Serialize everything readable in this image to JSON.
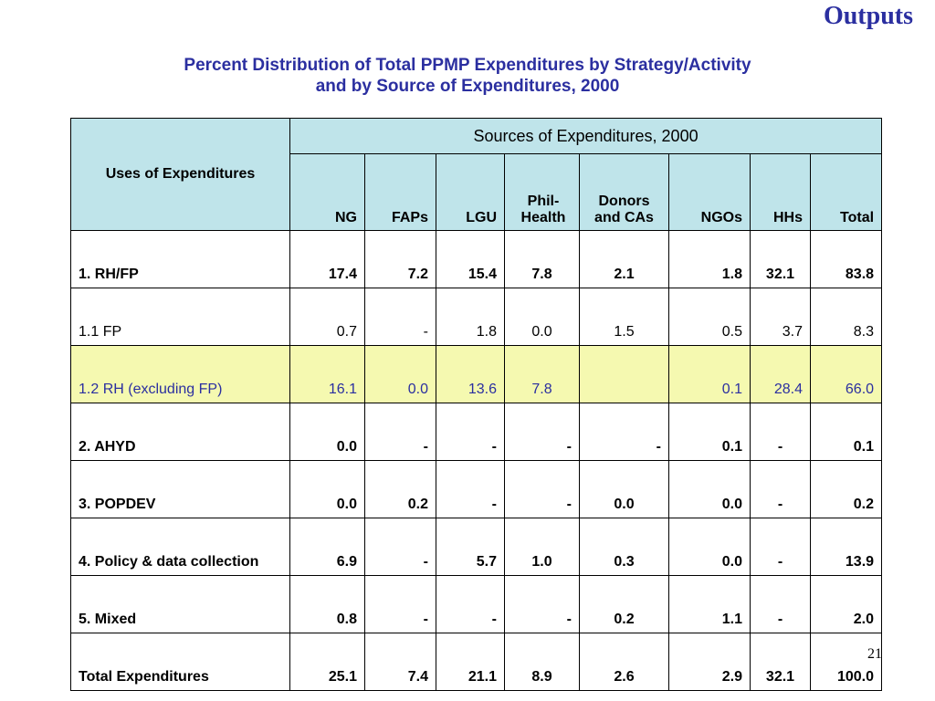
{
  "header": {
    "section": "Outputs",
    "title_line1": "Percent Distribution of Total PPMP Expenditures by Strategy/Activity",
    "title_line2": "and by Source of Expenditures,  2000"
  },
  "table": {
    "row_header": "Uses of Expenditures",
    "group_header": "Sources of Expenditures, 2000",
    "columns": [
      "NG",
      "FAPs",
      "LGU",
      "Phil-Health",
      "Donors and CAs",
      "NGOs",
      "HHs",
      "Total"
    ],
    "rows": [
      {
        "label": "1.  RH/FP",
        "values": [
          "17.4",
          "7.2",
          "15.4",
          "7.8",
          "2.1",
          "1.8",
          "32.1",
          "83.8"
        ]
      },
      {
        "label": "1.1  FP",
        "values": [
          "0.7",
          "-",
          "1.8",
          "0.0",
          "1.5",
          "0.5",
          "3.7",
          "8.3"
        ]
      },
      {
        "label": "1.2  RH  (excluding FP)",
        "values": [
          "16.1",
          "0.0",
          "13.6",
          "7.8",
          "",
          "0.1",
          "28.4",
          "66.0"
        ]
      },
      {
        "label": "2.  AHYD",
        "values": [
          "0.0",
          "-",
          "-",
          "-",
          "-",
          "0.1",
          "-",
          "0.1"
        ]
      },
      {
        "label": "3.  POPDEV",
        "values": [
          "0.0",
          "0.2",
          "-",
          "-",
          "0.0",
          "0.0",
          "-",
          "0.2"
        ]
      },
      {
        "label": "4.  Policy & data collection",
        "values": [
          "6.9",
          "-",
          "5.7",
          "1.0",
          "0.3",
          "0.0",
          "-",
          "13.9"
        ]
      },
      {
        "label": "5.  Mixed",
        "values": [
          "0.8",
          "-",
          "-",
          "-",
          "0.2",
          "1.1",
          "-",
          "2.0"
        ]
      },
      {
        "label": "Total Expenditures",
        "values": [
          "25.1",
          "7.4",
          "21.1",
          "8.9",
          "2.6",
          "2.9",
          "32.1",
          "100.0"
        ]
      }
    ]
  },
  "colors": {
    "title": "#2b2fa0",
    "header_bg": "#bfe4ea",
    "highlight_bg": "#f5f9b0"
  },
  "page_number": "21"
}
